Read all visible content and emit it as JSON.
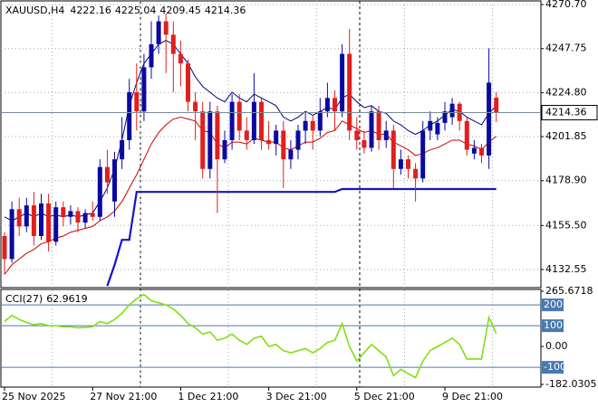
{
  "chart_data": [
    {
      "type": "candlestick",
      "symbol": "XAUUSD,H4",
      "categories": [
        "25 Nov 2025",
        null,
        null,
        null,
        null,
        null,
        null,
        null,
        null,
        null,
        null,
        null,
        "27 Nov 21:00",
        null,
        null,
        null,
        null,
        null,
        null,
        null,
        null,
        null,
        null,
        null,
        "1 Dec 21:00",
        null,
        null,
        null,
        null,
        null,
        null,
        null,
        null,
        null,
        null,
        null,
        "3 Dec 21:00",
        null,
        null,
        null,
        null,
        null,
        null,
        null,
        null,
        null,
        null,
        null,
        "5 Dec 21:00",
        null,
        null,
        null,
        null,
        null,
        null,
        null,
        null,
        null,
        null,
        null,
        "9 Dec 21:00",
        null,
        null,
        null,
        null,
        null,
        null,
        null
      ],
      "ohlc": [
        [
          4150,
          4152,
          4130,
          4138
        ],
        [
          4138,
          4168,
          4136,
          4164
        ],
        [
          4164,
          4170,
          4150,
          4155
        ],
        [
          4155,
          4170,
          4152,
          4166
        ],
        [
          4166,
          4173,
          4145,
          4150
        ],
        [
          4150,
          4172,
          4148,
          4167
        ],
        [
          4167,
          4172,
          4142,
          4147
        ],
        [
          4147,
          4168,
          4145,
          4165
        ],
        [
          4165,
          4168,
          4155,
          4160
        ],
        [
          4160,
          4166,
          4156,
          4163
        ],
        [
          4163,
          4165,
          4152,
          4157
        ],
        [
          4157,
          4164,
          4154,
          4162
        ],
        [
          4162,
          4168,
          4158,
          4160
        ],
        [
          4160,
          4190,
          4158,
          4186
        ],
        [
          4186,
          4195,
          4172,
          4178
        ],
        [
          4168,
          4194,
          4160,
          4190
        ],
        [
          4190,
          4212,
          4185,
          4200
        ],
        [
          4200,
          4232,
          4195,
          4225
        ],
        [
          4225,
          4240,
          4205,
          4215
        ],
        [
          4215,
          4245,
          4210,
          4238
        ],
        [
          4238,
          4262,
          4232,
          4250
        ],
        [
          4250,
          4265,
          4245,
          4262
        ],
        [
          4262,
          4266,
          4235,
          4255
        ],
        [
          4255,
          4262,
          4225,
          4245
        ],
        [
          4245,
          4252,
          4228,
          4240
        ],
        [
          4240,
          4242,
          4215,
          4220
        ],
        [
          4220,
          4225,
          4200,
          4215
        ],
        [
          4215,
          4220,
          4180,
          4185
        ],
        [
          4185,
          4220,
          4180,
          4215
        ],
        [
          4215,
          4218,
          4162,
          4190
        ],
        [
          4190,
          4205,
          4188,
          4200
        ],
        [
          4200,
          4224,
          4195,
          4220
        ],
        [
          4220,
          4224,
          4200,
          4205
        ],
        [
          4205,
          4212,
          4195,
          4200
        ],
        [
          4200,
          4235,
          4198,
          4220
        ],
        [
          4220,
          4222,
          4195,
          4200
        ],
        [
          4200,
          4210,
          4195,
          4198
        ],
        [
          4198,
          4208,
          4192,
          4205
        ],
        [
          4205,
          4210,
          4175,
          4190
        ],
        [
          4190,
          4200,
          4185,
          4195
        ],
        [
          4195,
          4208,
          4190,
          4205
        ],
        [
          4205,
          4215,
          4198,
          4210
        ],
        [
          4210,
          4213,
          4195,
          4205
        ],
        [
          4205,
          4222,
          4202,
          4215
        ],
        [
          4215,
          4230,
          4212,
          4222
        ],
        [
          4222,
          4226,
          4205,
          4215
        ],
        [
          4215,
          4250,
          4212,
          4245
        ],
        [
          4245,
          4258,
          4200,
          4205
        ],
        [
          4205,
          4212,
          4195,
          4200
        ],
        [
          4200,
          4205,
          4193,
          4196
        ],
        [
          4196,
          4218,
          4194,
          4215
        ],
        [
          4215,
          4218,
          4195,
          4200
        ],
        [
          4200,
          4210,
          4196,
          4205
        ],
        [
          4205,
          4208,
          4175,
          4185
        ],
        [
          4185,
          4195,
          4182,
          4190
        ],
        [
          4190,
          4192,
          4180,
          4185
        ],
        [
          4185,
          4188,
          4168,
          4180
        ],
        [
          4180,
          4210,
          4178,
          4205
        ],
        [
          4205,
          4215,
          4200,
          4210
        ],
        [
          4203,
          4212,
          4200,
          4209
        ],
        [
          4209,
          4220,
          4205,
          4215
        ],
        [
          4212,
          4222,
          4208,
          4219
        ],
        [
          4219,
          4220,
          4205,
          4210
        ],
        [
          4210,
          4212,
          4192,
          4195
        ],
        [
          4193,
          4200,
          4190,
          4196
        ],
        [
          4196,
          4198,
          4188,
          4192
        ],
        [
          4192,
          4248,
          4185,
          4230
        ],
        [
          4222.16,
          4225.04,
          4209.45,
          4214.36
        ]
      ],
      "up_color": "#0a0aa0",
      "down_color": "#e0201c",
      "series": [
        {
          "color": "#000080",
          "width": 1,
          "values": [
            4160,
            4158,
            4160,
            4162,
            4160,
            4162,
            4160,
            4161,
            4160,
            4161,
            4160,
            4161,
            4162,
            4168,
            4175,
            4185,
            4200,
            4218,
            4230,
            4240,
            4245,
            4250,
            4252,
            4250,
            4245,
            4240,
            4233,
            4228,
            4225,
            4222,
            4220,
            4225,
            4222,
            4220,
            4224,
            4222,
            4220,
            4218,
            4212,
            4210,
            4212,
            4215,
            4213,
            4215,
            4217,
            4216,
            4222,
            4224,
            4220,
            4217,
            4218,
            4215,
            4214,
            4210,
            4208,
            4205,
            4203,
            4205,
            4208,
            4210,
            4213,
            4216,
            4215,
            4212,
            4210,
            4208,
            4214,
            4218
          ]
        },
        {
          "color": "#cc0000",
          "width": 1,
          "values": [
            4130,
            4135,
            4138,
            4141,
            4143,
            4146,
            4147,
            4149,
            4150,
            4152,
            4153,
            4154,
            4155,
            4158,
            4160,
            4163,
            4168,
            4175,
            4182,
            4190,
            4198,
            4204,
            4208,
            4211,
            4212,
            4211,
            4210,
            4205,
            4204,
            4198,
            4196,
            4199,
            4199,
            4198,
            4201,
            4200,
            4199,
            4199,
            4196,
            4195,
            4197,
            4199,
            4199,
            4201,
            4204,
            4205,
            4210,
            4208,
            4206,
            4204,
            4205,
            4203,
            4203,
            4199,
            4197,
            4195,
            4192,
            4193,
            4195,
            4196,
            4198,
            4200,
            4200,
            4198,
            4197,
            4195,
            4199,
            4202
          ]
        },
        {
          "color": "#1414c8",
          "width": 2.2,
          "values": [
            null,
            null,
            null,
            null,
            null,
            null,
            null,
            null,
            null,
            null,
            null,
            null,
            null,
            null,
            4124,
            4135,
            4148,
            4148,
            4173,
            4173,
            4173,
            4173,
            4173,
            4173,
            4173,
            4173,
            4173,
            4173,
            4173,
            4173,
            4173,
            4173,
            4173,
            4173,
            4173,
            4173,
            4173,
            4173,
            4173,
            4173,
            4173,
            4173,
            4173,
            4173,
            4173,
            4173,
            4174.5,
            4174.5,
            4174.5,
            4174.5,
            4174.5,
            4174.5,
            4174.5,
            4174.5,
            4174.5,
            4174.5,
            4174.5,
            4174.5,
            4174.5,
            4174.5,
            4174.5,
            4174.5,
            4174.5,
            4174.5,
            4174.5,
            4174.5,
            4174.5,
            4174.5
          ]
        }
      ],
      "ylim": [
        4123.1,
        4273.1
      ],
      "yticks": [
        4132.55,
        {
          "value": 4155.5,
          "label": "4155.50"
        },
        {
          "value": 4178.9,
          "label": "4178.90"
        },
        4201.85,
        {
          "value": 4224.8,
          "label": "4224.80"
        },
        4247.75,
        {
          "value": 4270.7,
          "label": "4270.70"
        }
      ],
      "grid": true
    },
    {
      "type": "line",
      "title": "CCI(27)",
      "color": "#80e010",
      "values": [
        120,
        150,
        130,
        115,
        105,
        110,
        100,
        100,
        95,
        95,
        90,
        92,
        95,
        120,
        110,
        130,
        160,
        200,
        230,
        250,
        220,
        210,
        200,
        180,
        150,
        110,
        90,
        60,
        70,
        30,
        40,
        60,
        30,
        10,
        40,
        50,
        0,
        10,
        -20,
        -30,
        -20,
        -10,
        -30,
        -10,
        20,
        30,
        110,
        0,
        -70,
        -30,
        10,
        -20,
        -50,
        -140,
        -110,
        -130,
        -150,
        -70,
        -20,
        0,
        20,
        40,
        10,
        -60,
        -60,
        -60,
        140,
        62.9619
      ],
      "ylim": [
        -182.0305,
        265.6718
      ],
      "yticks": [
        -182.0305,
        {
          "value": 0,
          "label": "0.00"
        },
        265.6718
      ],
      "levels": [
        200,
        100,
        -100
      ],
      "level_color": "#4a78b0"
    }
  ]
}
